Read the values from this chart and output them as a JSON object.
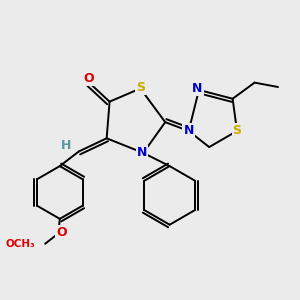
{
  "bg_color": "#ebebeb",
  "atom_colors": {
    "C": "#000000",
    "N": "#0000cc",
    "S": "#ccaa00",
    "O": "#dd0000",
    "H": "#559999"
  },
  "bond_color": "#000000",
  "lw": 1.4
}
